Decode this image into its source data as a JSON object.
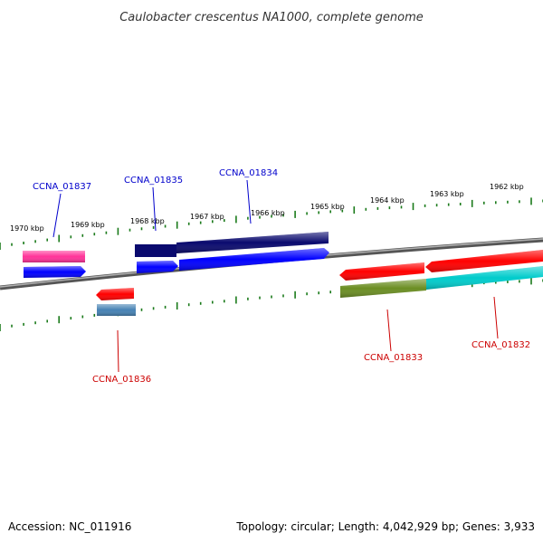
{
  "title": "Caulobacter crescentus NA1000, complete genome",
  "footer": {
    "accession": "Accession: NC_011916",
    "topology": "Topology: circular; Length: 4,042,929 bp; Genes: 3,933"
  },
  "scale_labels": [
    "1970 kbp",
    "1969 kbp",
    "1968 kbp",
    "1967 kbp",
    "1966 kbp",
    "1965 kbp",
    "1964 kbp",
    "1963 kbp",
    "1962 kbp"
  ],
  "genes": [
    {
      "id": "CCNA_01837",
      "color": "#1f1fcc"
    },
    {
      "id": "CCNA_01835",
      "color": "#1f1fcc"
    },
    {
      "id": "CCNA_01834",
      "color": "#1f1fcc"
    },
    {
      "id": "CCNA_01836",
      "color": "#e00000"
    },
    {
      "id": "CCNA_01833",
      "color": "#e00000"
    },
    {
      "id": "CCNA_01832",
      "color": "#e00000"
    }
  ],
  "colors": {
    "backbone": "#808080",
    "scale": "#1a7a1a",
    "forward_gene": "#0000ff",
    "reverse_gene": "#ff0000",
    "dark_navy": "#0a0a6e",
    "pink": "#ff3399",
    "steel_blue": "#4682b4",
    "olive": "#6b8e23",
    "cyan": "#00cccc"
  }
}
